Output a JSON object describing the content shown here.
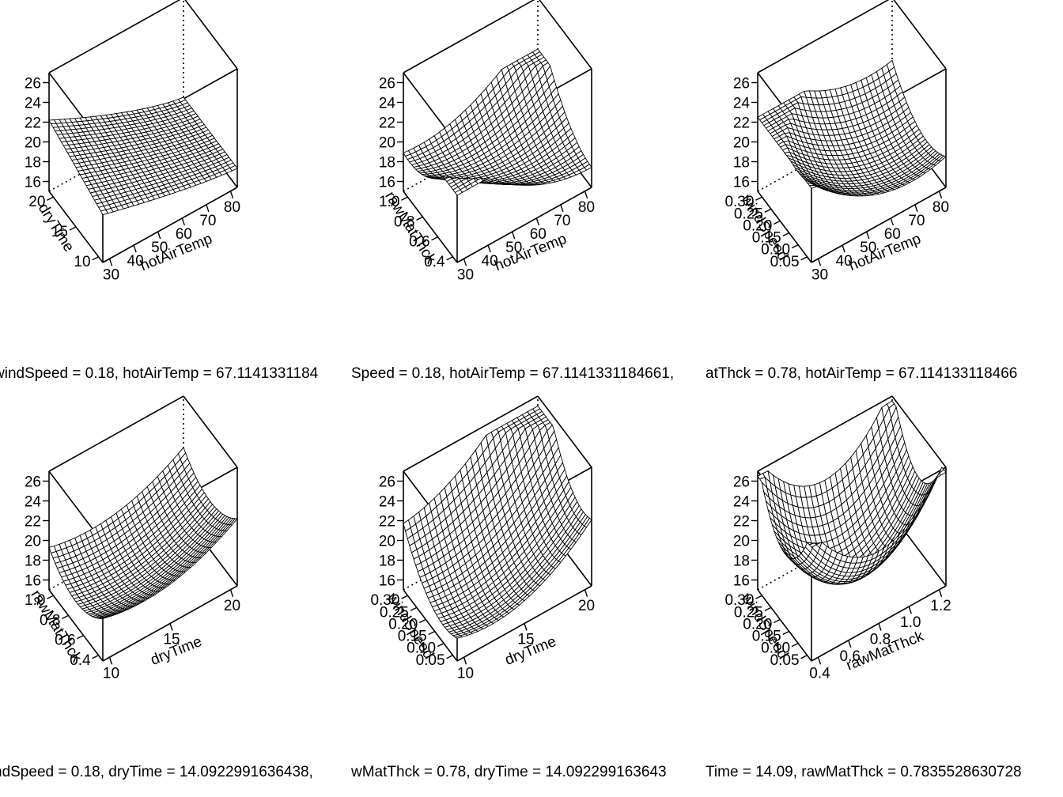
{
  "chart_data": [
    {
      "type": "surface",
      "xlabel": "hotAirTemp",
      "ylabel": "dryTime",
      "xticks": [
        "30",
        "40",
        "50",
        "60",
        "70",
        "80"
      ],
      "yticks": [
        "10",
        "15",
        "20"
      ],
      "zticks": [
        "16",
        "18",
        "20",
        "22",
        "24",
        "26"
      ],
      "xlim": [
        25,
        85
      ],
      "ylim": [
        8,
        22
      ],
      "zlim": [
        15,
        27
      ],
      "surface_z_range": [
        16.0,
        22.2
      ],
      "shape": "peak-at-low-temp-decreasing",
      "caption": "windSpeed = 0.18, hotAirTemp = 67.1141331184"
    },
    {
      "type": "surface",
      "xlabel": "hotAirTemp",
      "ylabel": "rawMatThck",
      "xticks": [
        "30",
        "40",
        "50",
        "60",
        "70",
        "80"
      ],
      "yticks": [
        "0.4",
        "0.6",
        "0.8",
        "1.0"
      ],
      "zticks": [
        "16",
        "18",
        "20",
        "22",
        "24",
        "26"
      ],
      "xlim": [
        25,
        85
      ],
      "ylim": [
        0.3,
        1.1
      ],
      "zlim": [
        15,
        27
      ],
      "surface_z_range": [
        16.5,
        21.8
      ],
      "shape": "valley-along-diagonal",
      "caption": "Speed = 0.18, hotAirTemp = 67.1141331184661,"
    },
    {
      "type": "surface",
      "xlabel": "hotAirTemp",
      "ylabel": "windSpeed",
      "xticks": [
        "30",
        "40",
        "50",
        "60",
        "70",
        "80"
      ],
      "yticks": [
        "0.05",
        "0.10",
        "0.15",
        "0.20",
        "0.25",
        "0.30"
      ],
      "zticks": [
        "16",
        "18",
        "20",
        "22",
        "24",
        "26"
      ],
      "xlim": [
        25,
        85
      ],
      "ylim": [
        0.03,
        0.32
      ],
      "zlim": [
        15,
        27
      ],
      "surface_z_range": [
        16.5,
        22.5
      ],
      "shape": "bowl-with-high-ridge",
      "caption": "atThck = 0.78, hotAirTemp = 67.114133118466"
    },
    {
      "type": "surface",
      "xlabel": "dryTime",
      "ylabel": "rawMatThck",
      "xticks": [
        "10",
        "15",
        "20"
      ],
      "yticks": [
        "0.4",
        "0.6",
        "0.8",
        "1.0"
      ],
      "zticks": [
        "16",
        "18",
        "20",
        "22",
        "24",
        "26"
      ],
      "xlim": [
        8,
        24
      ],
      "ylim": [
        0.3,
        1.1
      ],
      "zlim": [
        15,
        27
      ],
      "surface_z_range": [
        16.2,
        22.5
      ],
      "shape": "bowl-rising-to-right",
      "caption": "ndSpeed = 0.18, dryTime = 14.0922991636438,"
    },
    {
      "type": "surface",
      "xlabel": "dryTime",
      "ylabel": "windSpeed",
      "xticks": [
        "10",
        "15",
        "20"
      ],
      "yticks": [
        "0.05",
        "0.10",
        "0.15",
        "0.20",
        "0.25",
        "0.30"
      ],
      "zticks": [
        "16",
        "18",
        "20",
        "22",
        "24",
        "26"
      ],
      "xlim": [
        8,
        24
      ],
      "ylim": [
        0.03,
        0.32
      ],
      "zlim": [
        15,
        27
      ],
      "surface_z_range": [
        16.2,
        26.0
      ],
      "shape": "bowl-rising-to-back-corner",
      "caption": "wMatThck = 0.78, dryTime = 14.092299163643"
    },
    {
      "type": "surface",
      "xlabel": "rawMatThck",
      "ylabel": "windSpeed",
      "xticks": [
        "0.4",
        "0.6",
        "0.8",
        "1.0",
        "1.2"
      ],
      "yticks": [
        "0.05",
        "0.10",
        "0.15",
        "0.20",
        "0.25",
        "0.30"
      ],
      "zticks": [
        "16",
        "18",
        "20",
        "22",
        "24",
        "26"
      ],
      "xlim": [
        0.3,
        1.3
      ],
      "ylim": [
        0.03,
        0.32
      ],
      "zlim": [
        15,
        27
      ],
      "surface_z_range": [
        16.0,
        26.5
      ],
      "shape": "deep-bowl",
      "caption": "Time = 14.09, rawMatThck = 0.7835528630728"
    }
  ]
}
